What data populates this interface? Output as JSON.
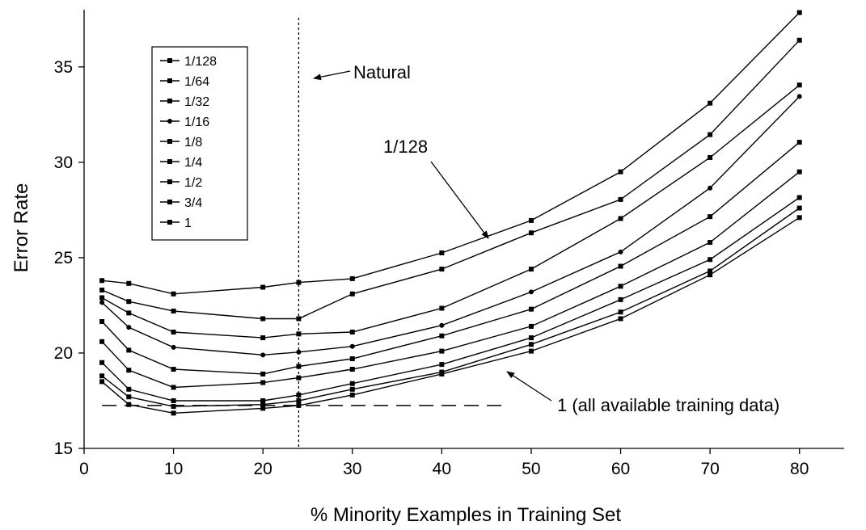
{
  "chart_data": {
    "type": "line",
    "title": "",
    "xlabel": "% Minority Examples in Training Set",
    "ylabel": "Error Rate",
    "xlim": [
      0,
      85
    ],
    "ylim": [
      15,
      38
    ],
    "x_ticks": [
      0,
      10,
      20,
      30,
      40,
      50,
      60,
      70,
      80
    ],
    "y_ticks": [
      15,
      20,
      25,
      30,
      35
    ],
    "legend_position": "top-left",
    "x": [
      2,
      5,
      10,
      20,
      24,
      30,
      40,
      50,
      60,
      70,
      80
    ],
    "series": [
      {
        "name": "1/128",
        "marker": "square",
        "values": [
          23.8,
          23.65,
          23.1,
          23.45,
          23.7,
          23.9,
          25.25,
          26.95,
          29.5,
          33.1,
          37.85
        ]
      },
      {
        "name": "1/64",
        "marker": "square",
        "values": [
          23.3,
          22.7,
          22.2,
          21.8,
          21.8,
          23.1,
          24.4,
          26.3,
          28.05,
          31.45,
          36.4
        ]
      },
      {
        "name": "1/32",
        "marker": "square",
        "values": [
          22.9,
          22.1,
          21.1,
          20.8,
          21.0,
          21.1,
          22.35,
          24.4,
          27.05,
          30.25,
          34.05
        ]
      },
      {
        "name": "1/16",
        "marker": "circle",
        "values": [
          22.65,
          21.35,
          20.3,
          19.9,
          20.05,
          20.35,
          21.45,
          23.2,
          25.3,
          28.65,
          33.45
        ]
      },
      {
        "name": "1/8",
        "marker": "square",
        "values": [
          21.65,
          20.15,
          19.15,
          18.9,
          19.3,
          19.7,
          20.9,
          22.3,
          24.55,
          27.15,
          31.05
        ]
      },
      {
        "name": "1/4",
        "marker": "square",
        "values": [
          20.6,
          19.1,
          18.2,
          18.45,
          18.7,
          19.15,
          20.1,
          21.4,
          23.5,
          25.8,
          29.5
        ]
      },
      {
        "name": "1/2",
        "marker": "square",
        "values": [
          19.5,
          18.1,
          17.5,
          17.5,
          17.8,
          18.4,
          19.4,
          20.8,
          22.8,
          24.9,
          28.15
        ]
      },
      {
        "name": "3/4",
        "marker": "square",
        "values": [
          18.8,
          17.7,
          17.2,
          17.3,
          17.5,
          18.1,
          19.0,
          20.45,
          22.15,
          24.3,
          27.6
        ]
      },
      {
        "name": "1",
        "marker": "square",
        "values": [
          18.5,
          17.3,
          16.85,
          17.1,
          17.25,
          17.8,
          18.9,
          20.1,
          21.8,
          24.1,
          27.1
        ]
      }
    ],
    "annotations": {
      "natural_label": "Natural",
      "natural_x": 24,
      "series_label": "1/128",
      "baseline_label": "1 (all available training data)",
      "baseline_y": 17.25,
      "baseline_x_range": [
        2,
        47
      ]
    }
  }
}
